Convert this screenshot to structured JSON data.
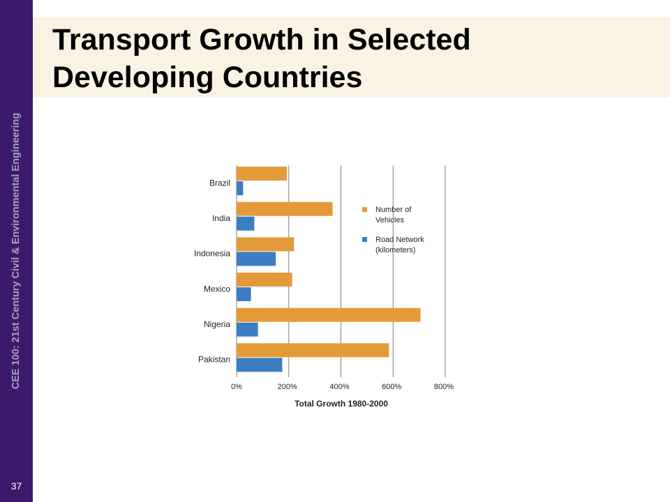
{
  "slide": {
    "title": "Transport Growth in Selected Developing Countries",
    "sidebar_text": "CEE 100: 21st Century Civil & Environmental Engineering",
    "page_number": "37"
  },
  "colors": {
    "sidebar": "#3b1a6e",
    "title_band": "#faf3e3",
    "vehicles": "#e59a3a",
    "road": "#3b7ec1"
  },
  "chart_data": {
    "type": "bar",
    "orientation": "horizontal",
    "categories": [
      "Brazil",
      "India",
      "Indonesia",
      "Mexico",
      "Nigeria",
      "Pakistan"
    ],
    "series": [
      {
        "name": "Number of Vehicles",
        "values": [
          193,
          368,
          220,
          213,
          705,
          584
        ],
        "color": "#e59a3a"
      },
      {
        "name": "Road Network (kilometers)",
        "values": [
          25,
          68,
          150,
          55,
          82,
          175
        ],
        "color": "#3b7ec1"
      }
    ],
    "xlabel": "Total Growth 1980-2000",
    "xlim": [
      0,
      800
    ],
    "x_ticks": [
      "0%",
      "200%",
      "400%",
      "600%",
      "800%"
    ],
    "legend": [
      {
        "lines": [
          "Number of",
          "Vehicles"
        ]
      },
      {
        "lines": [
          "Road Network",
          "(kilometers)"
        ]
      }
    ],
    "legend_position": "right",
    "grid": true
  }
}
